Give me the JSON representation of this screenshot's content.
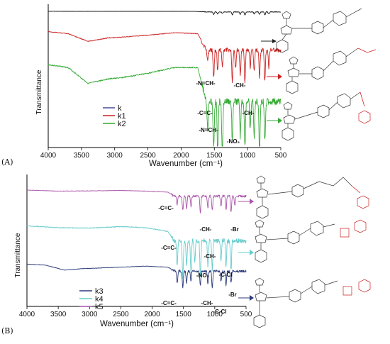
{
  "chart_data": [
    {
      "type": "line",
      "panel_label": "(A)",
      "xlabel": "Wavenumber (cm⁻¹)",
      "ylabel": "Transmittance",
      "xlim": [
        4000,
        500
      ],
      "x_reversed": true,
      "xticks": [
        "4000",
        "3500",
        "3000",
        "2500",
        "2000",
        "1500",
        "1000",
        "500"
      ],
      "grid": false,
      "legend": {
        "position": "lower-left",
        "entries": [
          "k",
          "k1",
          "k2"
        ]
      },
      "series": [
        {
          "name": "k",
          "color": "#111111",
          "offset": 0.96,
          "amp": 0.08,
          "baseline": [
            [
              4000,
              0.0
            ],
            [
              3500,
              0.02
            ],
            [
              2500,
              0.01
            ],
            [
              1800,
              0.02
            ],
            [
              1620,
              0.12
            ]
          ],
          "bands": [
            [
              1510,
              0.5
            ],
            [
              1450,
              0.4
            ],
            [
              1380,
              0.3
            ],
            [
              1230,
              0.6
            ],
            [
              1110,
              0.5
            ],
            [
              1040,
              0.6
            ],
            [
              900,
              0.4
            ],
            [
              820,
              0.5
            ],
            [
              740,
              0.6
            ],
            [
              680,
              0.4
            ]
          ]
        },
        {
          "name": "k1",
          "color": "#cc2222",
          "offset": 0.82,
          "amp": 0.55,
          "baseline": [
            [
              4000,
              0.02
            ],
            [
              3700,
              0.08
            ],
            [
              3400,
              0.3
            ],
            [
              3100,
              0.2
            ],
            [
              2900,
              0.18
            ],
            [
              2500,
              0.12
            ],
            [
              2100,
              0.05
            ],
            [
              1750,
              0.08
            ],
            [
              1620,
              0.55
            ]
          ],
          "bands": [
            [
              1600,
              0.3
            ],
            [
              1510,
              0.8
            ],
            [
              1450,
              0.6
            ],
            [
              1380,
              0.5
            ],
            [
              1230,
              0.9
            ],
            [
              1180,
              0.5
            ],
            [
              1110,
              0.7
            ],
            [
              1040,
              0.9
            ],
            [
              960,
              0.5
            ],
            [
              900,
              0.6
            ],
            [
              820,
              0.8
            ],
            [
              740,
              0.9
            ],
            [
              680,
              0.5
            ]
          ]
        },
        {
          "name": "k2",
          "color": "#33aa33",
          "offset": 0.6,
          "amp": 0.9,
          "baseline": [
            [
              4000,
              0.05
            ],
            [
              3700,
              0.1
            ],
            [
              3400,
              0.38
            ],
            [
              3100,
              0.3
            ],
            [
              2900,
              0.28
            ],
            [
              2500,
              0.2
            ],
            [
              2100,
              0.1
            ],
            [
              1750,
              0.1
            ],
            [
              1620,
              0.7
            ]
          ],
          "bands": [
            [
              1600,
              0.5
            ],
            [
              1510,
              0.9
            ],
            [
              1450,
              0.95
            ],
            [
              1380,
              1.0
            ],
            [
              1230,
              0.7
            ],
            [
              1110,
              0.6
            ],
            [
              1040,
              0.8
            ],
            [
              960,
              0.5
            ],
            [
              900,
              0.6
            ],
            [
              820,
              0.9
            ],
            [
              740,
              0.7
            ]
          ]
        }
      ],
      "annotations": [
        "-N=CH-",
        "-CH-",
        "-C=C-",
        "-CH-",
        "-N=CH-",
        "-NO₂"
      ]
    },
    {
      "type": "line",
      "panel_label": "(B)",
      "xlabel": "Wavenumber (cm⁻¹)",
      "ylabel": "Transmittance",
      "xlim": [
        4000,
        500
      ],
      "x_reversed": true,
      "xticks": [
        "4000",
        "3500",
        "3000",
        "2500",
        "2000",
        "1500",
        "1000",
        "500"
      ],
      "grid": false,
      "legend": {
        "position": "lower-left",
        "entries": [
          "k3",
          "k4",
          "k5"
        ]
      },
      "series": [
        {
          "name": "k5",
          "color": "#aa55aa",
          "offset": 0.9,
          "amp": 0.35,
          "baseline": [
            [
              4000,
              0.0
            ],
            [
              3500,
              0.05
            ],
            [
              3000,
              0.04
            ],
            [
              2500,
              0.02
            ],
            [
              2100,
              0.05
            ],
            [
              1750,
              0.1
            ],
            [
              1650,
              0.3
            ]
          ],
          "bands": [
            [
              1600,
              0.4
            ],
            [
              1510,
              0.7
            ],
            [
              1450,
              0.6
            ],
            [
              1380,
              0.5
            ],
            [
              1230,
              0.8
            ],
            [
              1110,
              0.6
            ],
            [
              1040,
              0.7
            ],
            [
              900,
              0.5
            ],
            [
              820,
              0.7
            ],
            [
              740,
              0.8
            ],
            [
              680,
              0.5
            ]
          ]
        },
        {
          "name": "k4",
          "color": "#66cccc",
          "offset": 0.62,
          "amp": 0.65,
          "baseline": [
            [
              4000,
              0.0
            ],
            [
              3500,
              0.05
            ],
            [
              3000,
              0.06
            ],
            [
              2500,
              0.02
            ],
            [
              2100,
              0.05
            ],
            [
              1750,
              0.15
            ],
            [
              1650,
              0.4
            ]
          ],
          "bands": [
            [
              1600,
              0.7
            ],
            [
              1510,
              1.0
            ],
            [
              1450,
              0.7
            ],
            [
              1380,
              0.9
            ],
            [
              1320,
              0.6
            ],
            [
              1230,
              1.0
            ],
            [
              1110,
              0.7
            ],
            [
              1040,
              0.8
            ],
            [
              900,
              0.5
            ],
            [
              820,
              0.7
            ],
            [
              740,
              0.8
            ]
          ]
        },
        {
          "name": "k3",
          "color": "#2b3a7a",
          "offset": 0.32,
          "amp": 0.35,
          "baseline": [
            [
              4000,
              0.0
            ],
            [
              3700,
              0.05
            ],
            [
              3400,
              0.3
            ],
            [
              3100,
              0.22
            ],
            [
              2900,
              0.2
            ],
            [
              2500,
              0.15
            ],
            [
              2100,
              0.1
            ],
            [
              1750,
              0.15
            ],
            [
              1620,
              0.35
            ]
          ],
          "bands": [
            [
              1600,
              0.6
            ],
            [
              1510,
              0.8
            ],
            [
              1450,
              0.6
            ],
            [
              1380,
              0.5
            ],
            [
              1230,
              0.7
            ],
            [
              1110,
              0.6
            ],
            [
              1040,
              0.8
            ],
            [
              900,
              0.5
            ],
            [
              820,
              0.7
            ],
            [
              740,
              0.6
            ]
          ]
        }
      ],
      "annotations": [
        "-C=C-",
        "-CH-",
        "-Br",
        "-C=C-",
        "-CH-",
        "-NO₂",
        "-C-Cl",
        "-C=C-",
        "-CH-",
        "-C-Cl",
        "-Br"
      ]
    }
  ]
}
